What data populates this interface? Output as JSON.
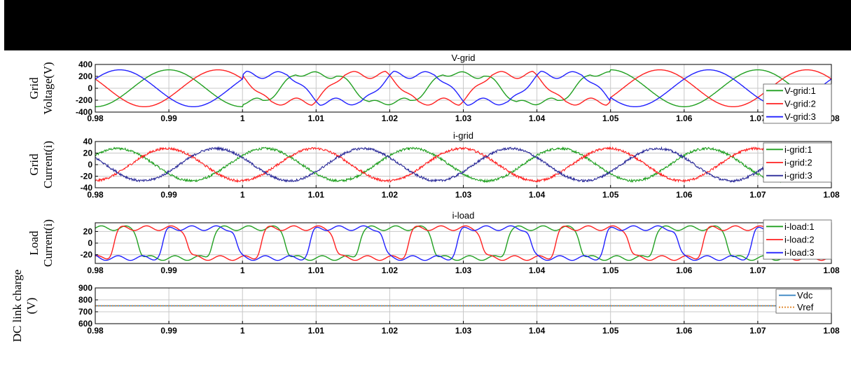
{
  "chart_data": [
    {
      "type": "line",
      "title": "V-grid",
      "ylabel_lines": [
        "Grid",
        "Voltage(V)"
      ],
      "xlim": [
        0.98,
        1.08
      ],
      "ylim": [
        -400,
        400
      ],
      "yticks": [
        400,
        200,
        0,
        -200,
        -400
      ],
      "xticks": [
        0.98,
        0.99,
        1,
        1.01,
        1.02,
        1.03,
        1.04,
        1.05,
        1.06,
        1.07,
        1.08
      ],
      "grid": true,
      "legend_position": "right",
      "series": [
        {
          "name": "V-grid:1",
          "color": "#21a021"
        },
        {
          "name": "V-grid:2",
          "color": "#ff2020"
        },
        {
          "name": "V-grid:3",
          "color": "#2020ff"
        }
      ],
      "amplitude": 310,
      "frequency_hz": 50,
      "distorted_interval": [
        1.0,
        1.05
      ]
    },
    {
      "type": "line",
      "title": "i-grid",
      "ylabel_lines": [
        "Grid",
        "Current(i)"
      ],
      "xlim": [
        0.98,
        1.08
      ],
      "ylim": [
        -40,
        40
      ],
      "yticks": [
        40,
        20,
        0,
        -20,
        -40
      ],
      "xticks": [
        0.98,
        0.99,
        1,
        1.01,
        1.02,
        1.03,
        1.04,
        1.05,
        1.06,
        1.07,
        1.08
      ],
      "grid": true,
      "legend_position": "right",
      "series": [
        {
          "name": "i-grid:1",
          "color": "#21a021"
        },
        {
          "name": "i-grid:2",
          "color": "#ff2020"
        },
        {
          "name": "i-grid:3",
          "color": "#2b2b99"
        }
      ],
      "amplitude": 28,
      "frequency_hz": 50
    },
    {
      "type": "line",
      "title": "i-load",
      "ylabel_lines": [
        "Load",
        "Current(i)"
      ],
      "xlim": [
        0.98,
        1.08
      ],
      "ylim": [
        -35,
        35
      ],
      "yticks": [
        20,
        0,
        -20
      ],
      "xticks": [
        0.98,
        0.99,
        1,
        1.01,
        1.02,
        1.03,
        1.04,
        1.05,
        1.06,
        1.07,
        1.08
      ],
      "grid": true,
      "legend_position": "right",
      "series": [
        {
          "name": "i-load:1",
          "color": "#21a021"
        },
        {
          "name": "i-load:2",
          "color": "#ff2020"
        },
        {
          "name": "i-load:3",
          "color": "#2020ff"
        }
      ],
      "amplitude": 28,
      "frequency_hz": 50
    },
    {
      "type": "line",
      "title": "",
      "ylabel_lines": [
        "DC link charge",
        "(V)"
      ],
      "xlim": [
        0.98,
        1.08
      ],
      "ylim": [
        600,
        900
      ],
      "yticks": [
        900,
        800,
        700,
        600
      ],
      "xticks": [
        0.98,
        0.99,
        1,
        1.01,
        1.02,
        1.03,
        1.04,
        1.05,
        1.06,
        1.07,
        1.08
      ],
      "grid": true,
      "legend_position": "top-right",
      "series": [
        {
          "name": "Vdc",
          "color": "#2f7fbf",
          "value": 750
        },
        {
          "name": "Vref",
          "color": "#e08020",
          "value": 750
        }
      ]
    }
  ]
}
